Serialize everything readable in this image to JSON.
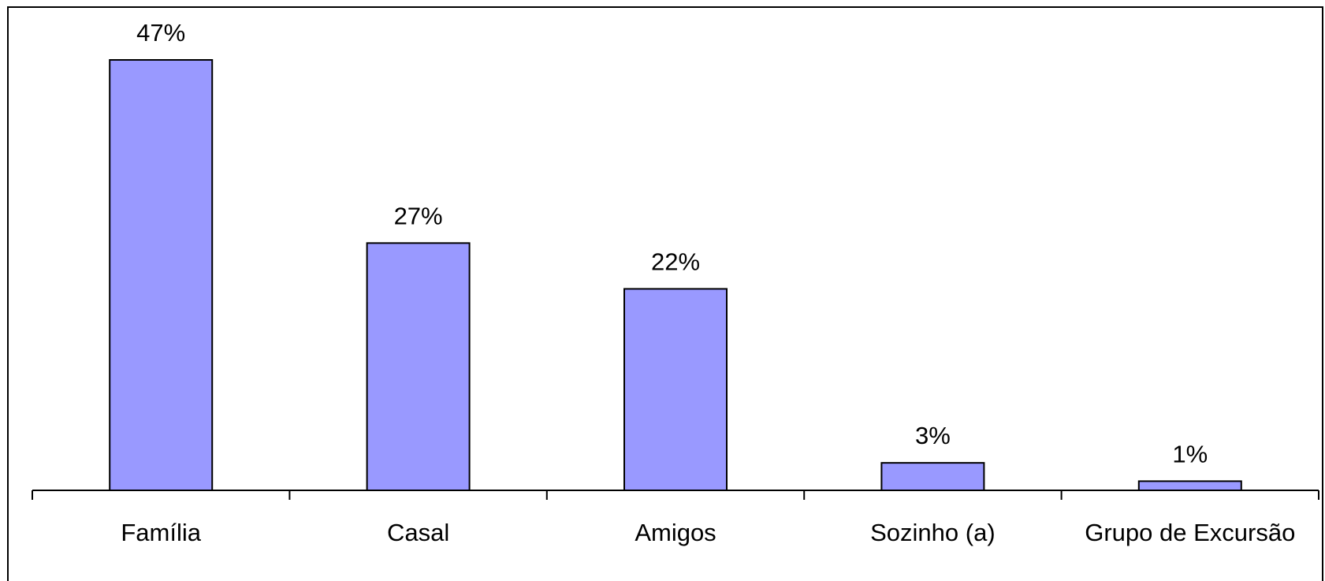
{
  "chart_data": {
    "type": "bar",
    "categories": [
      "Família",
      "Casal",
      "Amigos",
      "Sozinho (a)",
      "Grupo de Excursão"
    ],
    "values": [
      47,
      27,
      22,
      3,
      1
    ],
    "value_labels": [
      "47%",
      "27%",
      "22%",
      "3%",
      "1%"
    ],
    "color": "#9999ff"
  }
}
